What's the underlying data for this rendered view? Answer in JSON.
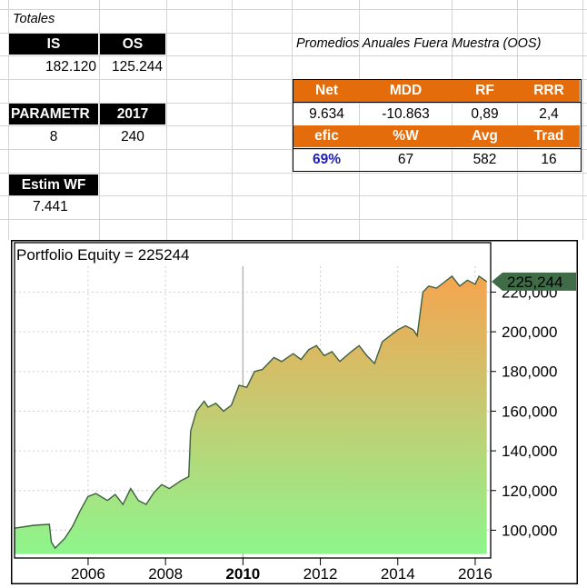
{
  "totales_label": "Totales",
  "totals": {
    "is_label": "IS",
    "os_label": "OS",
    "is_value": "182.120",
    "os_value": "125.244"
  },
  "param": {
    "label": "PARAMETR",
    "year": "2017",
    "value1": "8",
    "value2": "240"
  },
  "estim": {
    "label": "Estim WF",
    "value": "7.441"
  },
  "oos_title": "Promedios Anuales Fuera Muestra (OOS)",
  "stats": {
    "row1_headers": [
      "Net",
      "MDD",
      "RF",
      "RRR"
    ],
    "row1_values": [
      "9.634",
      "-10.863",
      "0,89",
      "2,4"
    ],
    "row2_headers": [
      "efic",
      "%W",
      "Avg",
      "Trad"
    ],
    "row2_values": [
      "69%",
      "67",
      "582",
      "16"
    ]
  },
  "colors": {
    "orange": "#e46c0a",
    "efic_blue": "#1f1fb4",
    "marker": "#3f6b46"
  },
  "chart_data": {
    "type": "area",
    "title": "Portfolio Equity = 225244",
    "last_value_label": "225,244",
    "x_ticks": [
      "2006",
      "2008",
      "2010",
      "2012",
      "2014",
      "2016"
    ],
    "x_tick_values": [
      2006,
      2008,
      2010,
      2012,
      2014,
      2016
    ],
    "bold_tick": "2010",
    "y_ticks": [
      "100,000",
      "120,000",
      "140,000",
      "160,000",
      "180,000",
      "200,000",
      "220,000"
    ],
    "y_tick_values": [
      100000,
      120000,
      140000,
      160000,
      180000,
      200000,
      220000
    ],
    "xlim": [
      2004.1,
      2016.4
    ],
    "ylim": [
      86000,
      233000
    ],
    "x": [
      2004.1,
      2004.6,
      2005.0,
      2005.05,
      2005.15,
      2005.4,
      2005.6,
      2005.8,
      2006.0,
      2006.2,
      2006.5,
      2006.7,
      2006.9,
      2007.1,
      2007.3,
      2007.5,
      2007.7,
      2007.9,
      2008.1,
      2008.4,
      2008.6,
      2008.65,
      2008.8,
      2009.0,
      2009.1,
      2009.3,
      2009.5,
      2009.7,
      2009.9,
      2010.1,
      2010.3,
      2010.5,
      2010.8,
      2011.0,
      2011.3,
      2011.5,
      2011.7,
      2011.9,
      2012.1,
      2012.3,
      2012.5,
      2012.8,
      2013.0,
      2013.2,
      2013.4,
      2013.6,
      2013.8,
      2014.0,
      2014.2,
      2014.4,
      2014.5,
      2014.65,
      2014.8,
      2015.0,
      2015.2,
      2015.4,
      2015.6,
      2015.8,
      2016.0,
      2016.1,
      2016.3
    ],
    "values": [
      101000,
      102500,
      103000,
      94000,
      91000,
      96000,
      102000,
      110000,
      117000,
      118500,
      115000,
      118000,
      113000,
      121000,
      115000,
      113000,
      119000,
      123000,
      121000,
      125000,
      127000,
      150000,
      160000,
      165000,
      162000,
      164000,
      160000,
      163000,
      173000,
      172000,
      180000,
      181000,
      187000,
      185000,
      189000,
      186000,
      191000,
      193000,
      188000,
      190000,
      185000,
      190000,
      193000,
      188000,
      184000,
      195000,
      198000,
      201000,
      203000,
      201000,
      198000,
      220000,
      223000,
      222000,
      225000,
      228000,
      223000,
      226000,
      224000,
      228000,
      225244
    ]
  }
}
